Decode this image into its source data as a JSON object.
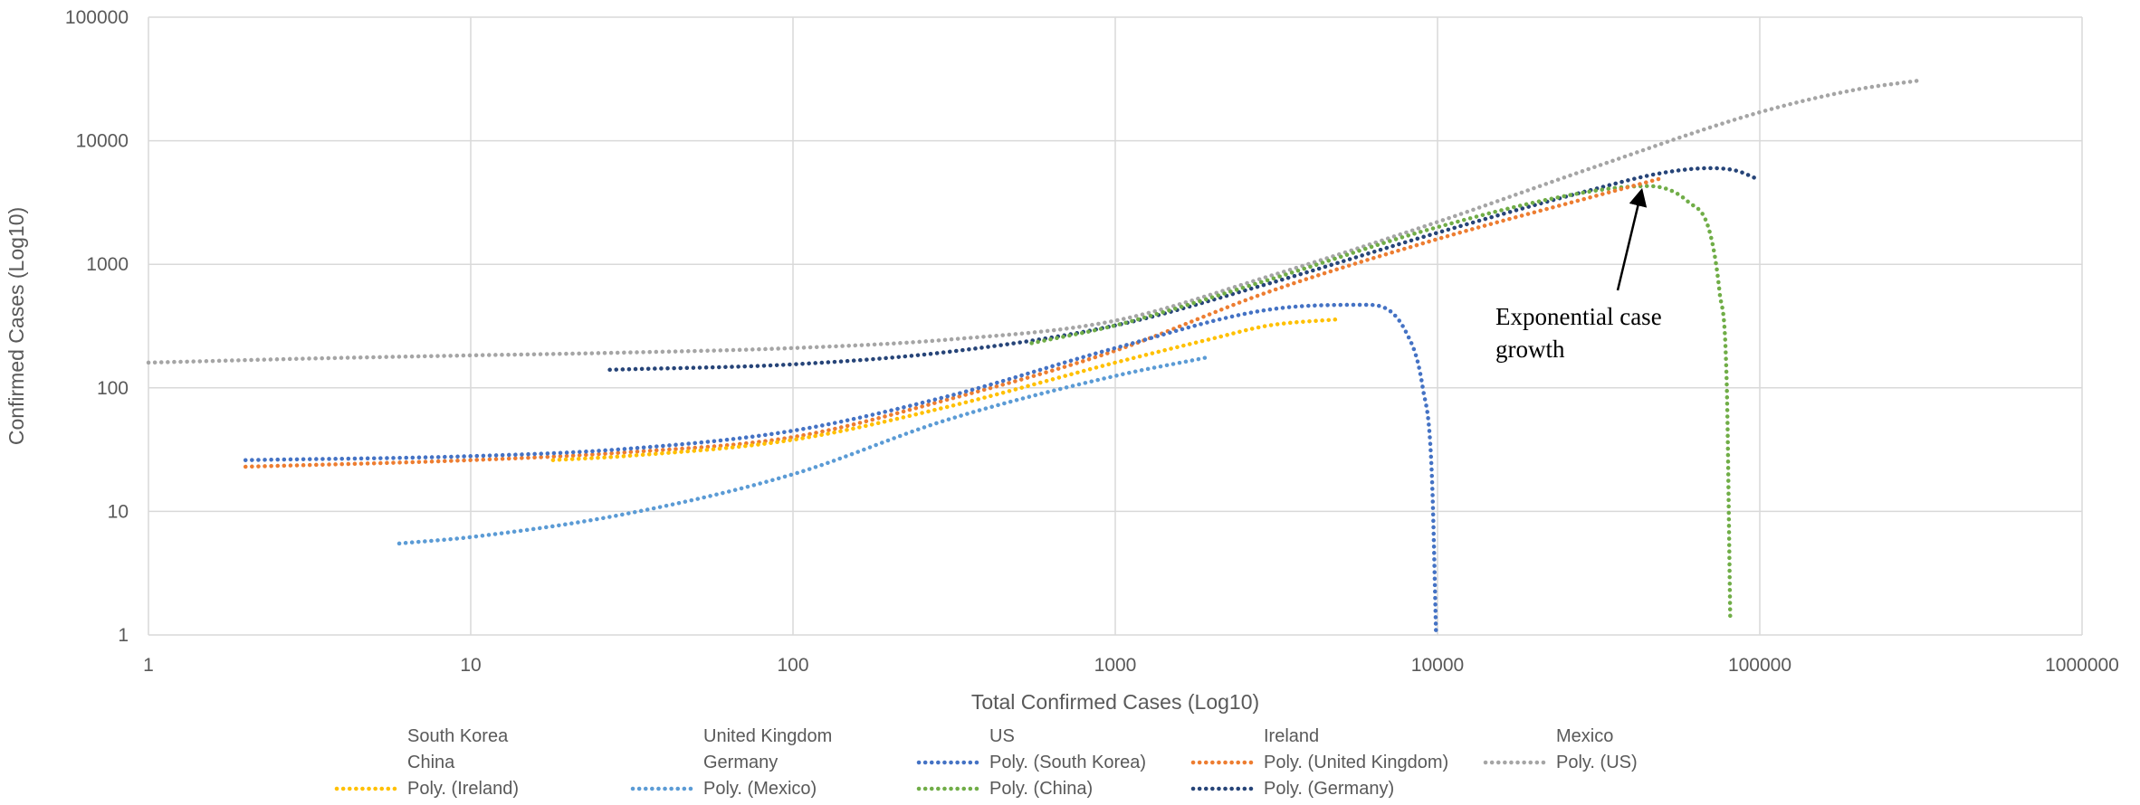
{
  "chart_data": {
    "type": "line",
    "xlabel": "Total Confirmed Cases (Log10)",
    "ylabel": "Confirmed Cases (Log10)",
    "xscale": "log",
    "yscale": "log",
    "xlim": [
      1,
      1000000
    ],
    "ylim": [
      1,
      100000
    ],
    "x_ticks": [
      "1",
      "10",
      "100",
      "1000",
      "10000",
      "100000",
      "1000000"
    ],
    "y_ticks": [
      "1",
      "10",
      "100",
      "1000",
      "10000",
      "100000"
    ],
    "grid": true,
    "legend_position": "bottom",
    "legend": [
      {
        "label": "South Korea",
        "marker": "none"
      },
      {
        "label": "United Kingdom",
        "marker": "none"
      },
      {
        "label": "US",
        "marker": "none"
      },
      {
        "label": "Ireland",
        "marker": "none"
      },
      {
        "label": "Mexico",
        "marker": "none"
      },
      {
        "label": "China",
        "marker": "none"
      },
      {
        "label": "Germany",
        "marker": "none"
      },
      {
        "label": "Poly. (South Korea)",
        "marker": "dotted",
        "color": "#4472C4"
      },
      {
        "label": "Poly. (United Kingdom)",
        "marker": "dotted",
        "color": "#ED7D31"
      },
      {
        "label": "Poly. (US)",
        "marker": "dotted",
        "color": "#A5A5A5"
      },
      {
        "label": "Poly. (Ireland)",
        "marker": "dotted",
        "color": "#FFC000"
      },
      {
        "label": "Poly. (Mexico)",
        "marker": "dotted",
        "color": "#5B9BD5"
      },
      {
        "label": "Poly. (China)",
        "marker": "dotted",
        "color": "#70AD47"
      },
      {
        "label": "Poly. (Germany)",
        "marker": "dotted",
        "color": "#264478"
      }
    ],
    "series": [
      {
        "name": "Poly. (US)",
        "color": "#A5A5A5",
        "x": [
          1,
          3,
          10,
          30,
          100,
          300,
          1000,
          3000,
          10000,
          30000,
          100000,
          200000,
          320000
        ],
        "y": [
          160,
          172,
          183,
          193,
          210,
          245,
          350,
          800,
          2200,
          6000,
          17000,
          26000,
          31000
        ]
      },
      {
        "name": "Poly. (Germany)",
        "color": "#264478",
        "x": [
          27,
          100,
          300,
          1000,
          3000,
          10000,
          30000,
          50000,
          70000,
          85000,
          100000
        ],
        "y": [
          140,
          155,
          195,
          320,
          700,
          1800,
          4000,
          5500,
          6000,
          5700,
          4800
        ]
      },
      {
        "name": "Poly. (China)",
        "color": "#70AD47",
        "x": [
          550,
          1000,
          3000,
          10000,
          30000,
          45000,
          60000,
          70000,
          75000,
          79000,
          81000
        ],
        "y": [
          230,
          320,
          750,
          2000,
          3900,
          4300,
          3200,
          1800,
          600,
          100,
          1.3
        ]
      },
      {
        "name": "Poly. (United Kingdom)",
        "color": "#ED7D31",
        "x": [
          2,
          10,
          30,
          100,
          300,
          1000,
          3000,
          10000,
          30000,
          50000
        ],
        "y": [
          23,
          26,
          30,
          40,
          80,
          200,
          600,
          1600,
          3500,
          5000
        ]
      },
      {
        "name": "Poly. (South Korea)",
        "color": "#4472C4",
        "x": [
          2,
          10,
          30,
          100,
          300,
          1000,
          3000,
          6000,
          8000,
          9000,
          9600,
          9900
        ],
        "y": [
          26,
          28,
          32,
          45,
          85,
          210,
          430,
          470,
          280,
          100,
          20,
          1
        ]
      },
      {
        "name": "Poly. (Ireland)",
        "color": "#FFC000",
        "x": [
          18,
          30,
          100,
          300,
          1000,
          2000,
          3000,
          5000
        ],
        "y": [
          26,
          28,
          38,
          70,
          160,
          250,
          320,
          360
        ]
      },
      {
        "name": "Poly. (Mexico)",
        "color": "#5B9BD5",
        "x": [
          6,
          10,
          30,
          100,
          300,
          1000,
          1900
        ],
        "y": [
          5.5,
          6.2,
          9.5,
          20,
          55,
          125,
          175
        ]
      }
    ],
    "annotation": {
      "text_lines": [
        "Exponential case",
        "growth"
      ],
      "arrow_to": {
        "x": 43000,
        "y": 4400
      }
    }
  }
}
